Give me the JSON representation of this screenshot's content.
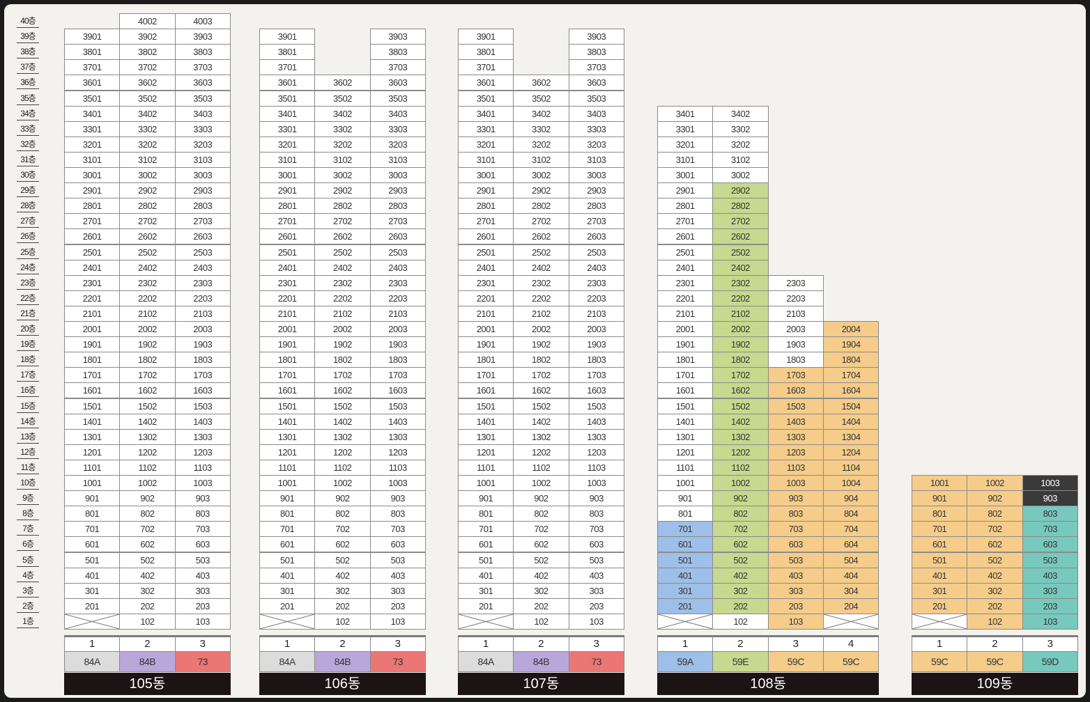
{
  "floors": [
    "40층",
    "39층",
    "38층",
    "37층",
    "36층",
    "35층",
    "34층",
    "33층",
    "32층",
    "31층",
    "30층",
    "29층",
    "28층",
    "27층",
    "26층",
    "25층",
    "24층",
    "23층",
    "22층",
    "21층",
    "20층",
    "19층",
    "18층",
    "17층",
    "16층",
    "15층",
    "14층",
    "13층",
    "12층",
    "11층",
    "10층",
    "9층",
    "8층",
    "7층",
    "6층",
    "5층",
    "4층",
    "3층",
    "2층",
    "1층"
  ],
  "buildings": [
    {
      "name": "105동",
      "lines": [
        {
          "num": "1",
          "type": "84A",
          "color": "#dcdcdc",
          "top": 39,
          "void_floors": [
            1
          ],
          "bands": []
        },
        {
          "num": "2",
          "type": "84B",
          "color": "#b9a7d9",
          "top": 40,
          "void_floors": [],
          "bands": []
        },
        {
          "num": "3",
          "type": "73",
          "color": "#ea7773",
          "top": 40,
          "void_floors": [],
          "bands": []
        }
      ]
    },
    {
      "name": "106동",
      "lines": [
        {
          "num": "1",
          "type": "84A",
          "color": "#dcdcdc",
          "top": 39,
          "void_floors": [
            1
          ],
          "bands": []
        },
        {
          "num": "2",
          "type": "84B",
          "color": "#b9a7d9",
          "top": 36,
          "void_floors": [],
          "bands": []
        },
        {
          "num": "3",
          "type": "73",
          "color": "#ea7773",
          "top": 39,
          "void_floors": [],
          "bands": []
        }
      ]
    },
    {
      "name": "107동",
      "lines": [
        {
          "num": "1",
          "type": "84A",
          "color": "#dcdcdc",
          "top": 39,
          "void_floors": [
            1
          ],
          "bands": []
        },
        {
          "num": "2",
          "type": "84B",
          "color": "#b9a7d9",
          "top": 36,
          "void_floors": [],
          "bands": []
        },
        {
          "num": "3",
          "type": "73",
          "color": "#ea7773",
          "top": 39,
          "void_floors": [],
          "bands": []
        }
      ]
    },
    {
      "name": "108동",
      "lines": [
        {
          "num": "1",
          "type": "59A",
          "color": "#9ebfe7",
          "top": 34,
          "void_floors": [
            1
          ],
          "bands": [
            {
              "from": 2,
              "to": 7,
              "style": "blue"
            }
          ]
        },
        {
          "num": "2",
          "type": "59E",
          "color": "#c6d98e",
          "top": 34,
          "void_floors": [],
          "bands": [
            {
              "from": 2,
              "to": 29,
              "style": "green"
            }
          ]
        },
        {
          "num": "3",
          "type": "59C",
          "color": "#f5cc8a",
          "top": 23,
          "void_floors": [],
          "bands": [
            {
              "from": 1,
              "to": 17,
              "style": "orange"
            }
          ]
        },
        {
          "num": "4",
          "type": "59C",
          "color": "#f5cc8a",
          "top": 20,
          "void_floors": [
            1
          ],
          "bands": [
            {
              "from": 2,
              "to": 20,
              "style": "orange"
            }
          ]
        }
      ]
    },
    {
      "name": "109동",
      "lines": [
        {
          "num": "1",
          "type": "59C",
          "color": "#f5cc8a",
          "top": 10,
          "void_floors": [
            1
          ],
          "bands": [
            {
              "from": 2,
              "to": 10,
              "style": "orange"
            }
          ]
        },
        {
          "num": "2",
          "type": "59C",
          "color": "#f5cc8a",
          "top": 10,
          "void_floors": [],
          "bands": [
            {
              "from": 1,
              "to": 10,
              "style": "orange"
            }
          ]
        },
        {
          "num": "3",
          "type": "59D",
          "color": "#77c9bd",
          "top": 10,
          "void_floors": [],
          "bands": [
            {
              "from": 1,
              "to": 8,
              "style": "teal"
            },
            {
              "from": 9,
              "to": 10,
              "style": "dark"
            }
          ]
        }
      ]
    }
  ]
}
